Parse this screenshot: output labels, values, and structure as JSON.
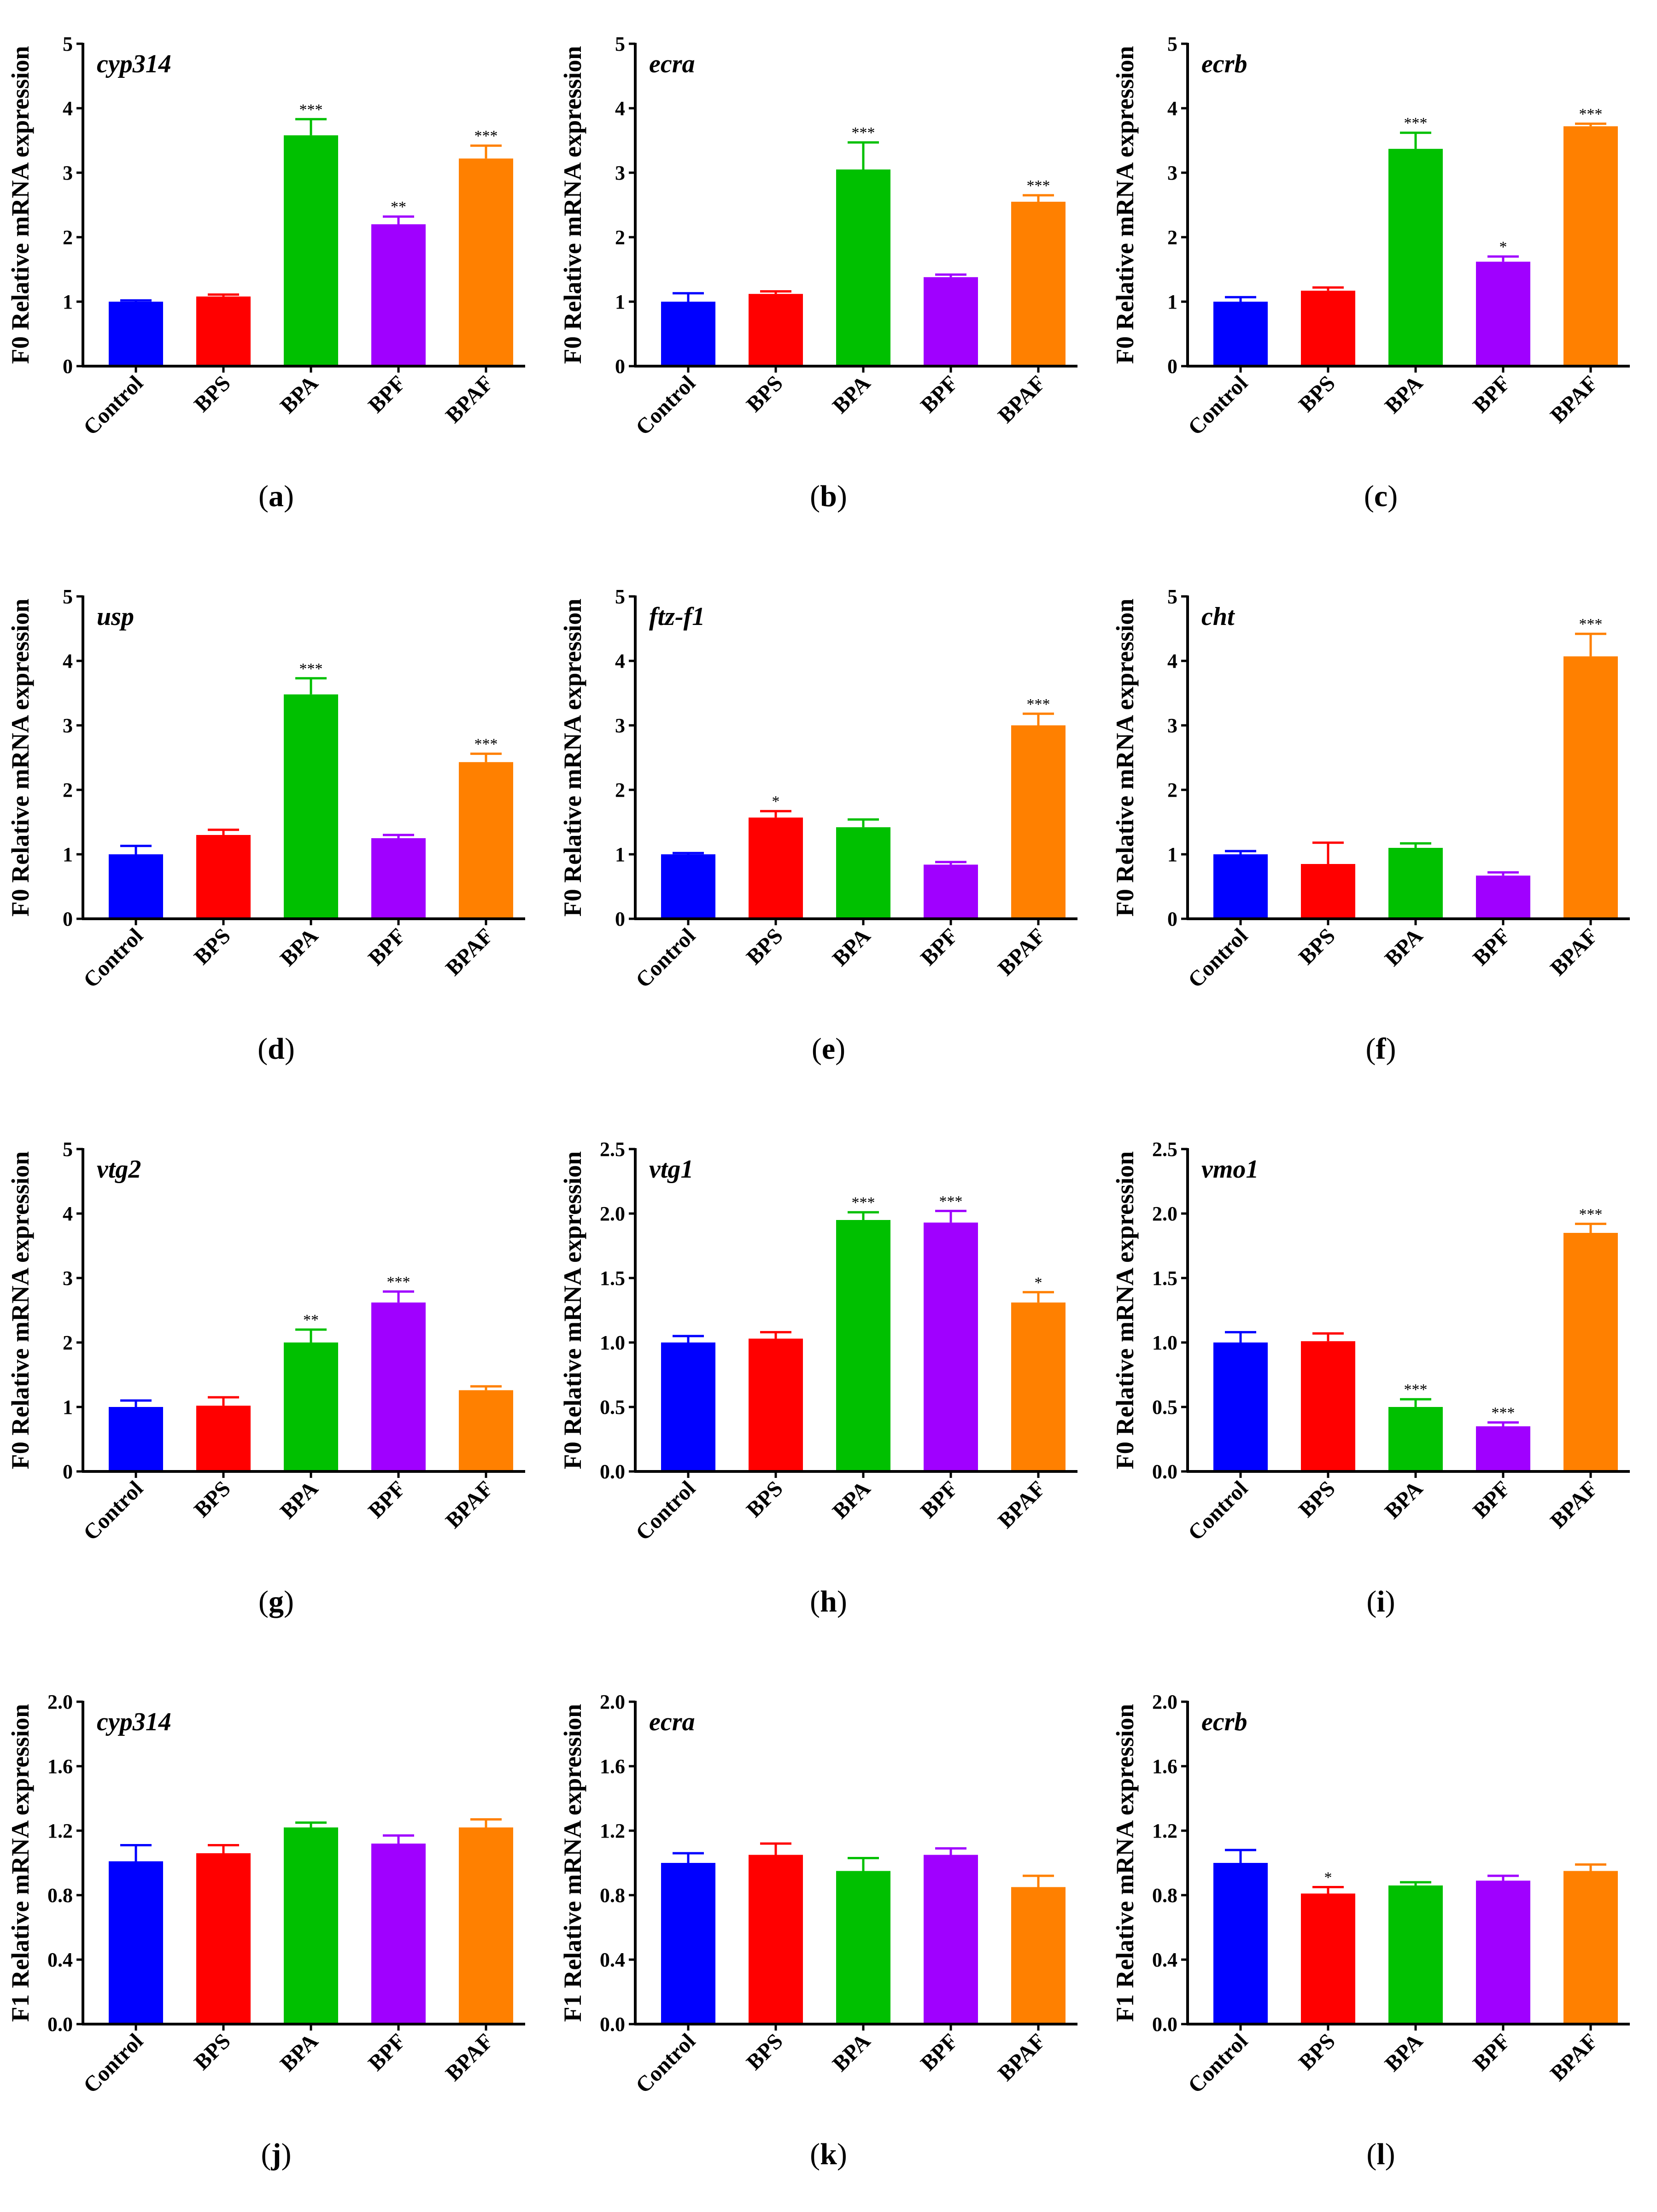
{
  "colors": {
    "Control": "#0000ff",
    "BPS": "#ff0000",
    "BPA": "#00c000",
    "BPF": "#a000ff",
    "BPAF": "#ff8000",
    "axis": "#000000"
  },
  "chart_data": [
    {
      "id": "a",
      "caption_letter": "a",
      "type": "bar",
      "title": "cyp314",
      "ylabel": "F0 Relative mRNA expression",
      "categories": [
        "Control",
        "BPS",
        "BPA",
        "BPF",
        "BPAF"
      ],
      "values": [
        1.0,
        1.08,
        3.58,
        2.2,
        3.22
      ],
      "errors": [
        0.02,
        0.03,
        0.25,
        0.12,
        0.2
      ],
      "significance": [
        "",
        "",
        "***",
        "**",
        "***"
      ],
      "ylim": [
        0,
        5
      ],
      "yticks": [
        "0",
        "1",
        "2",
        "3",
        "4",
        "5"
      ]
    },
    {
      "id": "b",
      "caption_letter": "b",
      "type": "bar",
      "title": "ecra",
      "ylabel": "F0 Relative mRNA expression",
      "categories": [
        "Control",
        "BPS",
        "BPA",
        "BPF",
        "BPAF"
      ],
      "values": [
        1.0,
        1.12,
        3.05,
        1.38,
        2.55
      ],
      "errors": [
        0.13,
        0.04,
        0.42,
        0.04,
        0.1
      ],
      "significance": [
        "",
        "",
        "***",
        "",
        "***"
      ],
      "ylim": [
        0,
        5
      ],
      "yticks": [
        "0",
        "1",
        "2",
        "3",
        "4",
        "5"
      ]
    },
    {
      "id": "c",
      "caption_letter": "c",
      "type": "bar",
      "title": "ecrb",
      "ylabel": "F0 Relative mRNA expression",
      "categories": [
        "Control",
        "BPS",
        "BPA",
        "BPF",
        "BPAF"
      ],
      "values": [
        1.0,
        1.17,
        3.37,
        1.62,
        3.72
      ],
      "errors": [
        0.07,
        0.05,
        0.25,
        0.08,
        0.04
      ],
      "significance": [
        "",
        "",
        "***",
        "*",
        "***"
      ],
      "ylim": [
        0,
        5
      ],
      "yticks": [
        "0",
        "1",
        "2",
        "3",
        "4",
        "5"
      ]
    },
    {
      "id": "d",
      "caption_letter": "d",
      "type": "bar",
      "title": "usp",
      "ylabel": "F0 Relative mRNA expression",
      "categories": [
        "Control",
        "BPS",
        "BPA",
        "BPF",
        "BPAF"
      ],
      "values": [
        1.0,
        1.3,
        3.48,
        1.25,
        2.43
      ],
      "errors": [
        0.13,
        0.08,
        0.25,
        0.05,
        0.13
      ],
      "significance": [
        "",
        "",
        "***",
        "",
        "***"
      ],
      "ylim": [
        0,
        5
      ],
      "yticks": [
        "0",
        "1",
        "2",
        "3",
        "4",
        "5"
      ]
    },
    {
      "id": "e",
      "caption_letter": "e",
      "type": "bar",
      "title": "ftz-f1",
      "ylabel": "F0 Relative mRNA expression",
      "categories": [
        "Control",
        "BPS",
        "BPA",
        "BPF",
        "BPAF"
      ],
      "values": [
        1.0,
        1.57,
        1.42,
        0.84,
        3.0
      ],
      "errors": [
        0.02,
        0.1,
        0.12,
        0.04,
        0.18
      ],
      "significance": [
        "",
        "*",
        "",
        "",
        "***"
      ],
      "ylim": [
        0,
        5
      ],
      "yticks": [
        "0",
        "1",
        "2",
        "3",
        "4",
        "5"
      ]
    },
    {
      "id": "f",
      "caption_letter": "f",
      "type": "bar",
      "title": "cht",
      "ylabel": "F0 Relative mRNA expression",
      "categories": [
        "Control",
        "BPS",
        "BPA",
        "BPF",
        "BPAF"
      ],
      "values": [
        1.0,
        0.85,
        1.1,
        0.67,
        4.07
      ],
      "errors": [
        0.05,
        0.33,
        0.07,
        0.05,
        0.35
      ],
      "significance": [
        "",
        "",
        "",
        "",
        "***"
      ],
      "ylim": [
        0,
        5
      ],
      "yticks": [
        "0",
        "1",
        "2",
        "3",
        "4",
        "5"
      ]
    },
    {
      "id": "g",
      "caption_letter": "g",
      "type": "bar",
      "title": "vtg2",
      "ylabel": "F0 Relative mRNA expression",
      "categories": [
        "Control",
        "BPS",
        "BPA",
        "BPF",
        "BPAF"
      ],
      "values": [
        1.0,
        1.02,
        2.0,
        2.62,
        1.26
      ],
      "errors": [
        0.1,
        0.13,
        0.2,
        0.17,
        0.06
      ],
      "significance": [
        "",
        "",
        "**",
        "***",
        ""
      ],
      "ylim": [
        0,
        5
      ],
      "yticks": [
        "0",
        "1",
        "2",
        "3",
        "4",
        "5"
      ]
    },
    {
      "id": "h",
      "caption_letter": "h",
      "type": "bar",
      "title": "vtg1",
      "ylabel": "F0 Relative mRNA expression",
      "categories": [
        "Control",
        "BPS",
        "BPA",
        "BPF",
        "BPAF"
      ],
      "values": [
        1.0,
        1.03,
        1.95,
        1.93,
        1.31
      ],
      "errors": [
        0.05,
        0.05,
        0.06,
        0.09,
        0.08
      ],
      "significance": [
        "",
        "",
        "***",
        "***",
        "*"
      ],
      "ylim": [
        0,
        2.5
      ],
      "yticks": [
        "0.0",
        "0.5",
        "1.0",
        "1.5",
        "2.0",
        "2.5"
      ]
    },
    {
      "id": "i",
      "caption_letter": "i",
      "type": "bar",
      "title": "vmo1",
      "ylabel": "F0 Relative mRNA expression",
      "categories": [
        "Control",
        "BPS",
        "BPA",
        "BPF",
        "BPAF"
      ],
      "values": [
        1.0,
        1.01,
        0.5,
        0.35,
        1.85
      ],
      "errors": [
        0.08,
        0.06,
        0.06,
        0.03,
        0.07
      ],
      "significance": [
        "",
        "",
        "***",
        "***",
        "***"
      ],
      "ylim": [
        0,
        2.5
      ],
      "yticks": [
        "0.0",
        "0.5",
        "1.0",
        "1.5",
        "2.0",
        "2.5"
      ]
    },
    {
      "id": "j",
      "caption_letter": "j",
      "type": "bar",
      "title": "cyp314",
      "ylabel": "F1 Relative mRNA expression",
      "categories": [
        "Control",
        "BPS",
        "BPA",
        "BPF",
        "BPAF"
      ],
      "values": [
        1.01,
        1.06,
        1.22,
        1.12,
        1.22
      ],
      "errors": [
        0.1,
        0.05,
        0.03,
        0.05,
        0.05
      ],
      "significance": [
        "",
        "",
        "",
        "",
        ""
      ],
      "ylim": [
        0,
        2.0
      ],
      "yticks": [
        "0.0",
        "0.4",
        "0.8",
        "1.2",
        "1.6",
        "2.0"
      ]
    },
    {
      "id": "k",
      "caption_letter": "k",
      "type": "bar",
      "title": "ecra",
      "ylabel": "F1 Relative mRNA expression",
      "categories": [
        "Control",
        "BPS",
        "BPA",
        "BPF",
        "BPAF"
      ],
      "values": [
        1.0,
        1.05,
        0.95,
        1.05,
        0.85
      ],
      "errors": [
        0.06,
        0.07,
        0.08,
        0.04,
        0.07
      ],
      "significance": [
        "",
        "",
        "",
        "",
        ""
      ],
      "ylim": [
        0,
        2.0
      ],
      "yticks": [
        "0.0",
        "0.4",
        "0.8",
        "1.2",
        "1.6",
        "2.0"
      ]
    },
    {
      "id": "l",
      "caption_letter": "l",
      "type": "bar",
      "title": "ecrb",
      "ylabel": "F1 Relative mRNA expression",
      "categories": [
        "Control",
        "BPS",
        "BPA",
        "BPF",
        "BPAF"
      ],
      "values": [
        1.0,
        0.81,
        0.86,
        0.89,
        0.95
      ],
      "errors": [
        0.08,
        0.04,
        0.02,
        0.03,
        0.04
      ],
      "significance": [
        "",
        "*",
        "",
        "",
        ""
      ],
      "ylim": [
        0,
        2.0
      ],
      "yticks": [
        "0.0",
        "0.4",
        "0.8",
        "1.2",
        "1.6",
        "2.0"
      ]
    }
  ]
}
